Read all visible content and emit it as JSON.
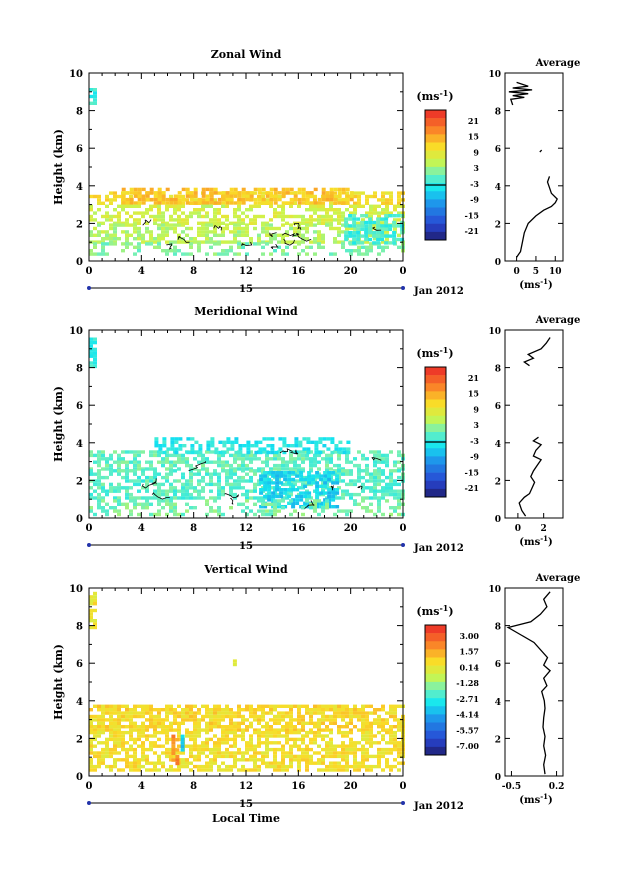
{
  "chart_data": [
    {
      "type": "heatmap",
      "title": "Zonal Wind",
      "ylabel": "Height (km)",
      "xlabel": "",
      "x_ticks": [
        "0",
        "4",
        "8",
        "12",
        "16",
        "20",
        "0"
      ],
      "day_label": "15",
      "date_label": "Jan 2012",
      "xlim": [
        0,
        24
      ],
      "ylim": [
        0,
        10
      ],
      "y_ticks": [
        "0",
        "2",
        "4",
        "6",
        "8",
        "10"
      ],
      "colorbar": {
        "unit_label": "(ms",
        "unit_exp": "-1",
        "ticks": [
          "21",
          "15",
          "9",
          "3",
          "-3",
          "-9",
          "-15",
          "-21"
        ],
        "range": [
          -24,
          24
        ]
      },
      "layers": [
        {
          "x0": 0.0,
          "x1": 24.0,
          "y0": 3.0,
          "y1": 3.7,
          "value": 10,
          "density": 0.55
        },
        {
          "x0": 2.5,
          "x1": 20.0,
          "y0": 3.1,
          "y1": 3.9,
          "value": 12,
          "density": 0.7
        },
        {
          "x0": 0.0,
          "x1": 24.0,
          "y0": 2.0,
          "y1": 3.0,
          "value": 6,
          "density": 0.55
        },
        {
          "x0": 0.0,
          "x1": 24.0,
          "y0": 1.0,
          "y1": 2.0,
          "value": 4,
          "density": 0.6
        },
        {
          "x0": 0.0,
          "x1": 24.0,
          "y0": 0.3,
          "y1": 1.0,
          "value": 1,
          "density": 0.4
        },
        {
          "x0": 19.5,
          "x1": 24.0,
          "y0": 1.0,
          "y1": 2.5,
          "value": -2,
          "density": 0.65
        },
        {
          "x0": 0.0,
          "x1": 0.6,
          "y0": 8.4,
          "y1": 9.2,
          "value": -3,
          "density": 0.8
        }
      ],
      "avg_profile": {
        "title": "Average",
        "unit_label": "(ms",
        "unit_exp": "-1",
        "x_ticks": [
          "0",
          "5",
          "10"
        ],
        "xlim": [
          -3,
          12
        ],
        "points": [
          [
            0,
            0.2
          ],
          [
            1,
            0.5
          ],
          [
            1.5,
            1.0
          ],
          [
            2,
            1.5
          ],
          [
            3,
            2.0
          ],
          [
            5,
            2.4
          ],
          [
            7,
            2.7
          ],
          [
            9,
            2.9
          ],
          [
            10,
            3.1
          ],
          [
            10.5,
            3.3
          ],
          [
            9,
            3.6
          ],
          [
            8.5,
            3.9
          ],
          [
            8,
            4.2
          ],
          [
            8.5,
            4.5
          ],
          [
            6,
            5.8
          ],
          [
            6.5,
            5.9
          ],
          [
            -1,
            8.3
          ],
          [
            -1.5,
            8.6
          ],
          [
            2,
            8.7
          ],
          [
            -1,
            8.8
          ],
          [
            3,
            8.9
          ],
          [
            -2,
            9.0
          ],
          [
            4,
            9.1
          ],
          [
            -1,
            9.2
          ],
          [
            3,
            9.3
          ],
          [
            0,
            9.5
          ]
        ]
      }
    },
    {
      "type": "heatmap",
      "title": "Meridional Wind",
      "ylabel": "Height (km)",
      "xlabel": "",
      "x_ticks": [
        "0",
        "4",
        "8",
        "12",
        "16",
        "20",
        "0"
      ],
      "day_label": "15",
      "date_label": "Jan 2012",
      "xlim": [
        0,
        24
      ],
      "ylim": [
        0,
        10
      ],
      "y_ticks": [
        "0",
        "2",
        "4",
        "6",
        "8",
        "10"
      ],
      "colorbar": {
        "unit_label": "(ms",
        "unit_exp": "-1",
        "ticks": [
          "21",
          "15",
          "9",
          "3",
          "-3",
          "-9",
          "-15",
          "-21"
        ],
        "range": [
          -24,
          24
        ]
      },
      "layers": [
        {
          "x0": 0.0,
          "x1": 24.0,
          "y0": 2.6,
          "y1": 3.6,
          "value": -0.5,
          "density": 0.6
        },
        {
          "x0": 5.0,
          "x1": 20.0,
          "y0": 3.4,
          "y1": 4.3,
          "value": -4,
          "density": 0.45
        },
        {
          "x0": 0.0,
          "x1": 24.0,
          "y0": 1.0,
          "y1": 2.6,
          "value": -1,
          "density": 0.6
        },
        {
          "x0": 13.0,
          "x1": 19.0,
          "y0": 0.5,
          "y1": 2.5,
          "value": -6,
          "density": 0.7
        },
        {
          "x0": 0.0,
          "x1": 24.0,
          "y0": 0.2,
          "y1": 1.0,
          "value": 0.5,
          "density": 0.35
        },
        {
          "x0": 0.0,
          "x1": 0.6,
          "y0": 8.0,
          "y1": 9.6,
          "value": -3,
          "density": 0.8
        }
      ],
      "avg_profile": {
        "title": "Average",
        "unit_label": "(ms",
        "unit_exp": "-1",
        "x_ticks": [
          "0",
          "2"
        ],
        "xlim": [
          -1,
          3.5
        ],
        "points": [
          [
            0.6,
            0.1
          ],
          [
            0.3,
            0.4
          ],
          [
            0.1,
            0.8
          ],
          [
            0.5,
            1.1
          ],
          [
            0.9,
            1.3
          ],
          [
            1.1,
            1.6
          ],
          [
            1.3,
            1.9
          ],
          [
            1.0,
            2.2
          ],
          [
            1.2,
            2.5
          ],
          [
            1.5,
            2.8
          ],
          [
            1.8,
            3.1
          ],
          [
            1.2,
            3.3
          ],
          [
            1.4,
            3.6
          ],
          [
            1.8,
            3.9
          ],
          [
            1.2,
            4.1
          ],
          [
            1.6,
            4.3
          ],
          [
            0.9,
            8.1
          ],
          [
            0.5,
            8.3
          ],
          [
            1.2,
            8.5
          ],
          [
            0.8,
            8.7
          ],
          [
            1.8,
            9.0
          ],
          [
            2.2,
            9.3
          ],
          [
            2.5,
            9.6
          ]
        ]
      }
    },
    {
      "type": "heatmap",
      "title": "Vertical Wind",
      "ylabel": "Height (km)",
      "xlabel": "Local Time",
      "x_ticks": [
        "0",
        "4",
        "8",
        "12",
        "16",
        "20",
        "0"
      ],
      "day_label": "15",
      "date_label": "Jan 2012",
      "xlim": [
        0,
        24
      ],
      "ylim": [
        0,
        10
      ],
      "y_ticks": [
        "0",
        "2",
        "4",
        "6",
        "8",
        "10"
      ],
      "colorbar": {
        "unit_label": "(ms",
        "unit_exp": "-1",
        "ticks": [
          "3.00",
          "1.57",
          "0.14",
          "-1.28",
          "-2.71",
          "-4.14",
          "-5.57",
          "-7.00"
        ],
        "range": [
          -8.0,
          4.0
        ]
      },
      "layers": [
        {
          "x0": 0.0,
          "x1": 24.0,
          "y0": 2.4,
          "y1": 3.8,
          "value": 0.6,
          "density": 0.75
        },
        {
          "x0": 0.0,
          "x1": 24.0,
          "y0": 0.3,
          "y1": 2.4,
          "value": 0.4,
          "density": 0.65
        },
        {
          "x0": 6.3,
          "x1": 6.8,
          "y0": 0.6,
          "y1": 2.2,
          "value": 2.0,
          "density": 0.9
        },
        {
          "x0": 7.0,
          "x1": 7.2,
          "y0": 1.4,
          "y1": 2.2,
          "value": -3.5,
          "density": 0.9
        },
        {
          "x0": 0.0,
          "x1": 0.6,
          "y0": 7.8,
          "y1": 9.8,
          "value": 0.3,
          "density": 0.8
        },
        {
          "x0": 11.0,
          "x1": 11.3,
          "y0": 5.9,
          "y1": 6.2,
          "value": 0.3,
          "density": 1.0
        }
      ],
      "avg_profile": {
        "title": "Average",
        "unit_label": "(ms",
        "unit_exp": "-1",
        "x_ticks": [
          "-0.5",
          "0.2"
        ],
        "xlim": [
          -0.6,
          0.3
        ],
        "points": [
          [
            0.02,
            0.1
          ],
          [
            0.0,
            0.6
          ],
          [
            0.03,
            1.1
          ],
          [
            0.0,
            1.6
          ],
          [
            0.02,
            2.1
          ],
          [
            -0.01,
            2.6
          ],
          [
            0.0,
            3.1
          ],
          [
            0.02,
            3.6
          ],
          [
            0.01,
            4.0
          ],
          [
            -0.03,
            4.5
          ],
          [
            0.05,
            4.8
          ],
          [
            0.0,
            5.2
          ],
          [
            0.1,
            5.6
          ],
          [
            0.0,
            5.9
          ],
          [
            0.06,
            6.3
          ],
          [
            -0.15,
            7.1
          ],
          [
            -0.35,
            7.5
          ],
          [
            -0.55,
            7.9
          ],
          [
            -0.2,
            8.2
          ],
          [
            -0.05,
            8.6
          ],
          [
            0.05,
            9.0
          ],
          [
            0.0,
            9.4
          ],
          [
            0.1,
            9.8
          ]
        ]
      }
    }
  ]
}
